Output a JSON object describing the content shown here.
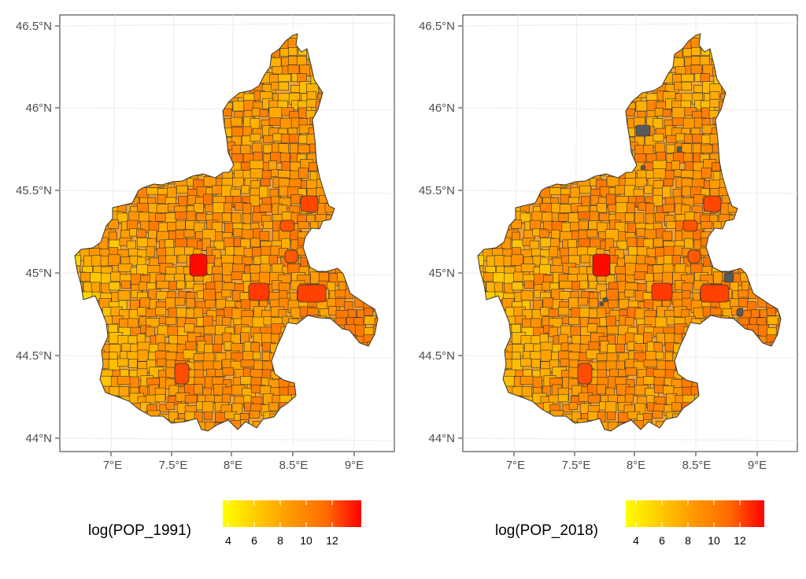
{
  "colors": {
    "low": "#ffff00",
    "mid": "#ff9a00",
    "high": "#ff0000",
    "missing": "#595959",
    "border": "#333333",
    "grid": "#ebebeb",
    "panel_border": "#333333"
  },
  "axes": {
    "y_ticks": [
      "44°N",
      "44.5°N",
      "45°N",
      "45.5°N",
      "46°N",
      "46.5°N"
    ],
    "x_ticks": [
      "7°E",
      "7.5°E",
      "8°E",
      "8.5°E",
      "9°E"
    ],
    "y_values": [
      44,
      44.5,
      45,
      45.5,
      46,
      46.5
    ],
    "x_values": [
      7,
      7.5,
      8,
      8.5,
      9
    ],
    "lat_range": [
      43.95,
      46.55
    ],
    "lon_range": [
      6.6,
      9.3
    ]
  },
  "chart_data": [
    {
      "type": "map",
      "region": "Piemonte municipalities",
      "variable": "log(POP_1991)",
      "legend": {
        "title": "log(POP_1991)",
        "ticks": [
          "4",
          "6",
          "8",
          "10",
          "12"
        ],
        "tick_values": [
          4,
          6,
          8,
          10,
          12
        ],
        "range": [
          3.5,
          14.2
        ],
        "placement": "bottom"
      },
      "missing_areas": 0
    },
    {
      "type": "map",
      "region": "Piemonte municipalities",
      "variable": "log(POP_2018)",
      "legend": {
        "title": "log(POP_2018)",
        "ticks": [
          "4",
          "6",
          "8",
          "10",
          "12"
        ],
        "tick_values": [
          4,
          6,
          8,
          10,
          12
        ],
        "range": [
          3.5,
          14.2
        ],
        "placement": "bottom"
      },
      "missing_areas": 8
    }
  ]
}
